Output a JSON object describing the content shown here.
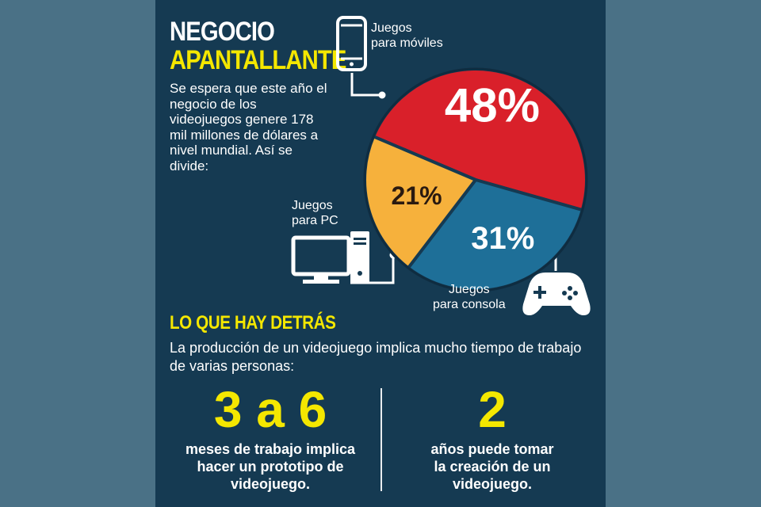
{
  "header": {
    "title_line1": "NEGOCIO",
    "title_line2": "APANTALLANTE",
    "intro": "Se espera que este año el negocio de los videojuegos genere 178 mil millones de dólares a nivel mundial. Así se divide:"
  },
  "chart_data": {
    "type": "pie",
    "slices": [
      {
        "label": "Juegos para móviles",
        "value": 48,
        "display": "48%",
        "color": "#d9202a"
      },
      {
        "label": "Juegos para consola",
        "value": 31,
        "display": "31%",
        "color": "#1e6f98"
      },
      {
        "label": "Juegos para PC",
        "value": 21,
        "display": "21%",
        "color": "#f6b13c"
      }
    ],
    "legend": "callout-labels"
  },
  "labels": {
    "mobile_line1": "Juegos",
    "mobile_line2": "para móviles",
    "pc_line1": "Juegos",
    "pc_line2": "para PC",
    "console_line1": "Juegos",
    "console_line2": "para consola"
  },
  "icons": {
    "mobile": "smartphone-icon",
    "pc": "desktop-computer-icon",
    "console": "gamepad-icon"
  },
  "section": {
    "title": "LO QUE HAY DETRÁS",
    "description": "La producción de un videojuego implica mucho tiempo de trabajo de varias personas:"
  },
  "stats": [
    {
      "number": "3 a 6",
      "line1": "meses de trabajo implica",
      "line2": "hacer un prototipo de",
      "line3": "videojuego."
    },
    {
      "number": "2",
      "line1": "años puede tomar",
      "line2": "la creación de un",
      "line3": "videojuego."
    }
  ],
  "colors": {
    "background": "#153a52",
    "outer": "#4a7186",
    "accent": "#f4e700"
  }
}
